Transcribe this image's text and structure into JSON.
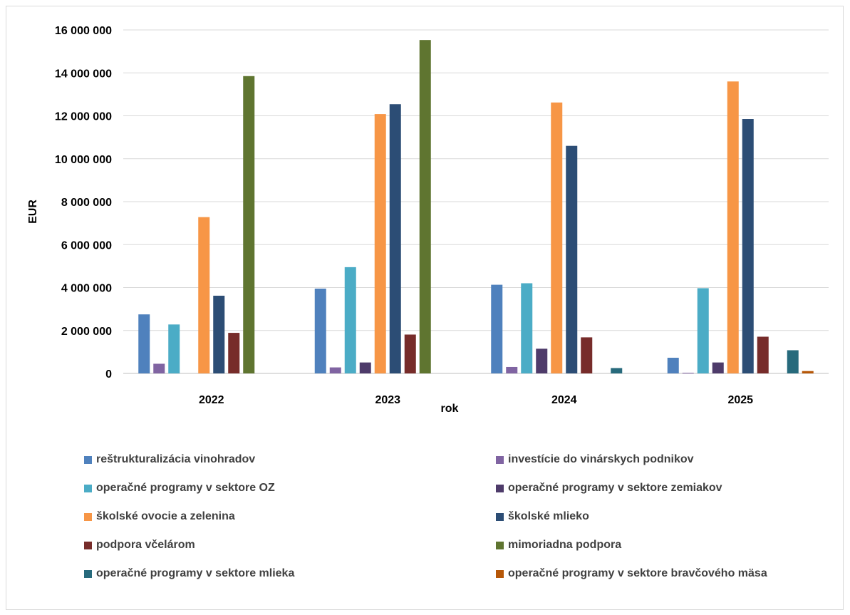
{
  "chart_data": {
    "type": "bar",
    "title": "",
    "xlabel": "rok",
    "ylabel": "EUR",
    "ylim": [
      0,
      16000000
    ],
    "yticks": [
      0,
      2000000,
      4000000,
      6000000,
      8000000,
      10000000,
      12000000,
      14000000,
      16000000
    ],
    "ytick_labels": [
      "0",
      "2 000 000",
      "4 000 000",
      "6 000 000",
      "8 000 000",
      "10 000 000",
      "12 000 000",
      "14 000 000",
      "16 000 000"
    ],
    "grid": true,
    "legend_position": "bottom",
    "categories": [
      "2022",
      "2023",
      "2024",
      "2025"
    ],
    "series": [
      {
        "name": "reštrukturalizácia vinohradov",
        "color": "#4F81BD",
        "values": [
          2750000,
          3950000,
          4130000,
          730000
        ]
      },
      {
        "name": "investície do vinárskych podnikov",
        "color": "#8064A2",
        "values": [
          450000,
          280000,
          300000,
          30000
        ]
      },
      {
        "name": "operačné programy v sektore OZ",
        "color": "#4BACC6",
        "values": [
          2280000,
          4950000,
          4200000,
          3970000
        ]
      },
      {
        "name": "operačné programy v sektore zemiakov",
        "color": "#4E3B6A",
        "values": [
          0,
          510000,
          1150000,
          510000
        ]
      },
      {
        "name": "školské ovocie a zelenina",
        "color": "#F79646",
        "values": [
          7280000,
          12080000,
          12620000,
          13600000
        ]
      },
      {
        "name": "školské mlieko",
        "color": "#2C4D75",
        "values": [
          3620000,
          12540000,
          10600000,
          11850000
        ]
      },
      {
        "name": "podpora včelárom",
        "color": "#772C2A",
        "values": [
          1890000,
          1810000,
          1680000,
          1710000
        ]
      },
      {
        "name": "mimoriadna podpora",
        "color": "#5F7530",
        "values": [
          13850000,
          15530000,
          0,
          0
        ]
      },
      {
        "name": "operačné programy v sektore mlieka",
        "color": "#276A7C",
        "values": [
          0,
          0,
          250000,
          1080000
        ]
      },
      {
        "name": "operačné programy v sektore bravčového mäsa",
        "color": "#B65708",
        "values": [
          0,
          0,
          0,
          110000
        ]
      }
    ]
  }
}
